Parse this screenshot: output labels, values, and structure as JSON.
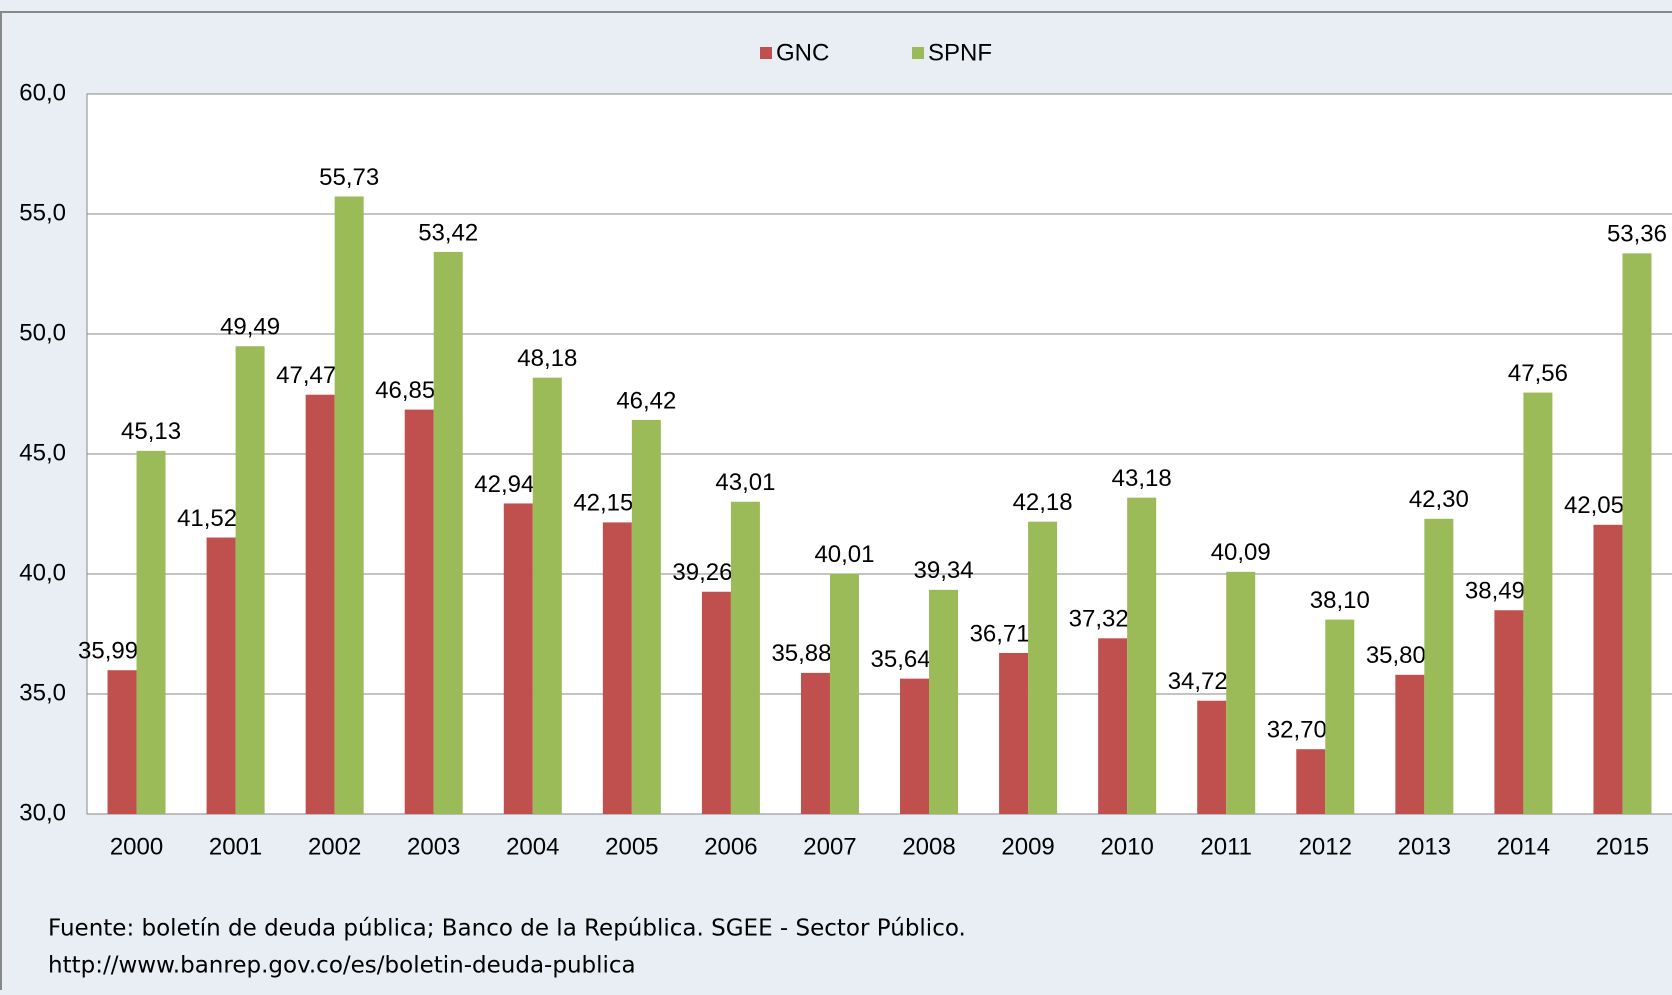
{
  "chart_data": {
    "type": "bar",
    "categories": [
      "2000",
      "2001",
      "2002",
      "2003",
      "2004",
      "2005",
      "2006",
      "2007",
      "2008",
      "2009",
      "2010",
      "2011",
      "2012",
      "2013",
      "2014",
      "2015"
    ],
    "series": [
      {
        "name": "GNC",
        "color": "#c0504d",
        "values": [
          35.99,
          41.52,
          47.47,
          46.85,
          42.94,
          42.15,
          39.26,
          35.88,
          35.64,
          36.71,
          37.32,
          34.72,
          32.7,
          35.8,
          38.49,
          42.05
        ],
        "value_labels": [
          "35,99",
          "41,52",
          "47,47",
          "46,85",
          "42,94",
          "42,15",
          "39,26",
          "35,88",
          "35,64",
          "36,71",
          "37,32",
          "34,72",
          "32,70",
          "35,80",
          "38,49",
          "42,05"
        ]
      },
      {
        "name": "SPNF",
        "color": "#9bbb59",
        "values": [
          45.13,
          49.49,
          55.73,
          53.42,
          48.18,
          46.42,
          43.01,
          40.01,
          39.34,
          42.18,
          43.18,
          40.09,
          38.1,
          42.3,
          47.56,
          53.36
        ],
        "value_labels": [
          "45,13",
          "49,49",
          "55,73",
          "53,42",
          "48,18",
          "46,42",
          "43,01",
          "40,01",
          "39,34",
          "42,18",
          "43,18",
          "40,09",
          "38,10",
          "42,30",
          "47,56",
          "53,36"
        ]
      }
    ],
    "ylim": [
      30,
      60
    ],
    "yticks": [
      {
        "value": 30,
        "label": "30,0"
      },
      {
        "value": 35,
        "label": "35,0"
      },
      {
        "value": 40,
        "label": "40,0"
      },
      {
        "value": 45,
        "label": "45,0"
      },
      {
        "value": 50,
        "label": "50,0"
      },
      {
        "value": 55,
        "label": "55,0"
      },
      {
        "value": 60,
        "label": "60,0"
      }
    ],
    "grid": true,
    "legend": "top",
    "notes": [
      "Fuente: boletín de deuda pública; Banco de la República. SGEE - Sector Público.",
      "http://www.banrep.gov.co/es/boletin-deuda-publica"
    ]
  }
}
